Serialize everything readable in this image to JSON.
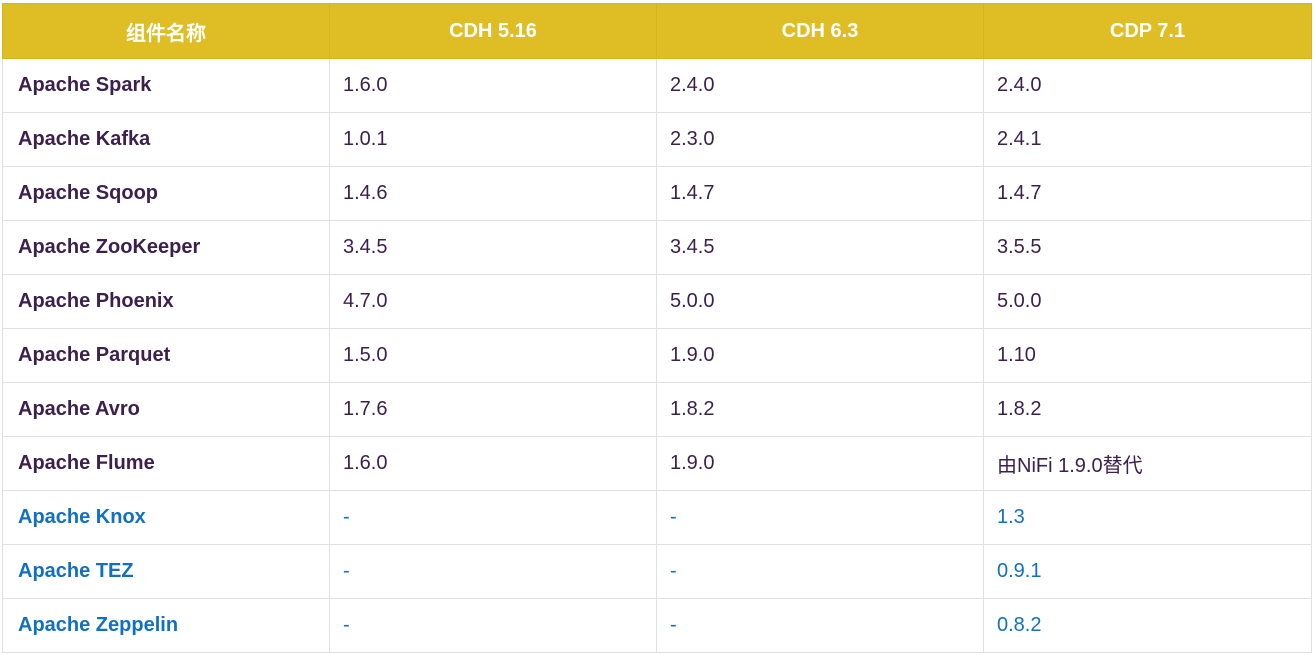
{
  "table": {
    "headers": [
      "组件名称",
      "CDH 5.16",
      "CDH 6.3",
      "CDP 7.1"
    ],
    "rows": [
      {
        "name": "Apache Spark",
        "cdh516": "1.6.0",
        "cdh63": "2.4.0",
        "cdp71": "2.4.0",
        "highlight": false
      },
      {
        "name": "Apache Kafka",
        "cdh516": "1.0.1",
        "cdh63": "2.3.0",
        "cdp71": "2.4.1",
        "highlight": false
      },
      {
        "name": "Apache Sqoop",
        "cdh516": "1.4.6",
        "cdh63": "1.4.7",
        "cdp71": "1.4.7",
        "highlight": false
      },
      {
        "name": "Apache ZooKeeper",
        "cdh516": "3.4.5",
        "cdh63": "3.4.5",
        "cdp71": "3.5.5",
        "highlight": false
      },
      {
        "name": "Apache Phoenix",
        "cdh516": "4.7.0",
        "cdh63": "5.0.0",
        "cdp71": "5.0.0",
        "highlight": false
      },
      {
        "name": "Apache Parquet",
        "cdh516": "1.5.0",
        "cdh63": "1.9.0",
        "cdp71": "1.10",
        "highlight": false
      },
      {
        "name": "Apache Avro",
        "cdh516": "1.7.6",
        "cdh63": "1.8.2",
        "cdp71": "1.8.2",
        "highlight": false
      },
      {
        "name": "Apache Flume",
        "cdh516": "1.6.0",
        "cdh63": "1.9.0",
        "cdp71": "由NiFi 1.9.0替代",
        "highlight": false
      },
      {
        "name": "Apache Knox",
        "cdh516": "-",
        "cdh63": "-",
        "cdp71": "1.3",
        "highlight": true
      },
      {
        "name": "Apache TEZ",
        "cdh516": "-",
        "cdh63": "-",
        "cdp71": "0.9.1",
        "highlight": true
      },
      {
        "name": "Apache Zeppelin",
        "cdh516": "-",
        "cdh63": "-",
        "cdp71": "0.8.2",
        "highlight": true
      }
    ]
  },
  "colors": {
    "header_bg": "#dfbd24",
    "header_text": "#ffffff",
    "name_text": "#3b1f4d",
    "new_component_text": "#1170c2",
    "border": "#e0e0e0"
  }
}
